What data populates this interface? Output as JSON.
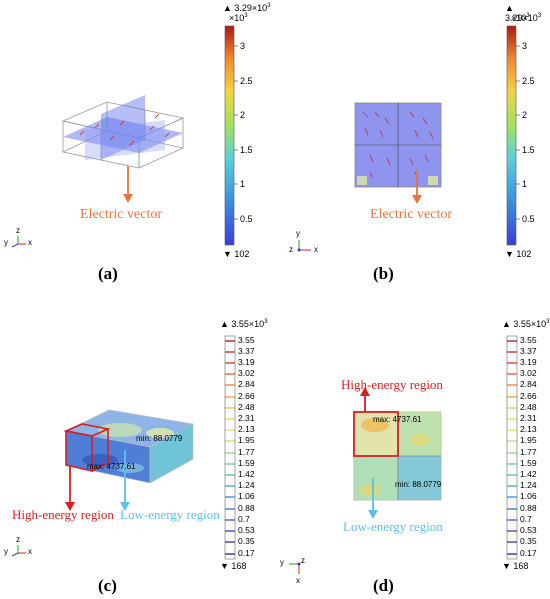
{
  "panels": {
    "a": {
      "caption": "(a)",
      "annotation": "Electric vector",
      "colorbar": {
        "max_label": "▲ 3.29×10",
        "exp": "3",
        "mult": "×10",
        "exp2": "3",
        "ticks": [
          "3",
          "2.5",
          "2",
          "1.5",
          "1",
          "0.5"
        ],
        "min_label": "▼ 102"
      },
      "axes": {
        "y": "y",
        "z": "z",
        "x": "x"
      }
    },
    "b": {
      "caption": "(b)",
      "annotation": "Electric vector",
      "colorbar": {
        "max_label": "▲ 3.29×10",
        "exp": "3",
        "mult": "×10",
        "exp2": "3",
        "ticks": [
          "3",
          "2.5",
          "2",
          "1.5",
          "1",
          "0.5"
        ],
        "min_label": "▼ 102"
      },
      "axes": {
        "y": "y",
        "z": "z",
        "x": "x"
      }
    },
    "c": {
      "caption": "(c)",
      "high": "High-energy region",
      "low": "Low-energy region",
      "max_text": "max: 4737.61",
      "min_text": "min: 88.0779",
      "colorbar": {
        "max_label": "▲ 3.55×10",
        "exp": "3",
        "ticks": [
          "3.55",
          "3.37",
          "3.19",
          "3.02",
          "2.84",
          "2.66",
          "2.48",
          "2.31",
          "2.13",
          "1.95",
          "1.77",
          "1.59",
          "1.42",
          "1.24",
          "1.06",
          "0.88",
          "0.7",
          "0.53",
          "0.35",
          "0.17"
        ],
        "min_label": "▼ 168"
      },
      "axes": {
        "y": "y",
        "z": "z",
        "x": "x"
      }
    },
    "d": {
      "caption": "(d)",
      "high": "High-energy region",
      "low": "Low-energy region",
      "max_text": "max: 4737.61",
      "min_text": "min: 88.0779",
      "colorbar": {
        "max_label": "▲ 3.55×10",
        "exp": "3",
        "ticks": [
          "3.55",
          "3.37",
          "3.19",
          "3.02",
          "2.84",
          "2.66",
          "2.48",
          "2.31",
          "2.13",
          "1.95",
          "1.77",
          "1.59",
          "1.42",
          "1.24",
          "1.06",
          "0.88",
          "0.7",
          "0.53",
          "0.35",
          "0.17"
        ],
        "min_label": "▼ 168"
      },
      "axes": {
        "y": "y",
        "z": "z",
        "x": "x"
      }
    }
  },
  "colors": {
    "annotation_orange": "#e8743b",
    "high_red": "#d62020",
    "low_blue": "#5bc0eb"
  }
}
